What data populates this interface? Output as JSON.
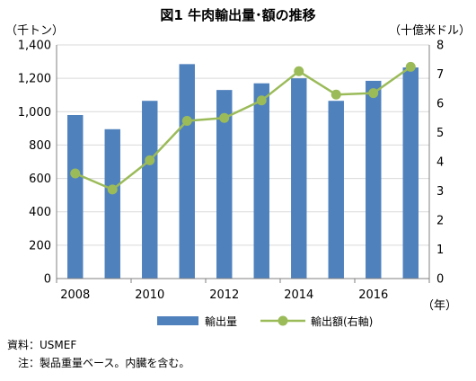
{
  "chart_data": {
    "type": "bar+line",
    "title": "図1  牛肉輸出量･額の推移",
    "left_axis_unit": "（千トン）",
    "right_axis_unit": "（十億米ドル）",
    "x_axis_unit": "（年）",
    "categories": [
      2008,
      2009,
      2010,
      2011,
      2012,
      2013,
      2014,
      2015,
      2016,
      2017
    ],
    "x_tick_labels": [
      "2008",
      "2010",
      "2012",
      "2014",
      "2016"
    ],
    "left_ticks": [
      "0",
      "200",
      "400",
      "600",
      "800",
      "1,000",
      "1,200",
      "1,400"
    ],
    "right_ticks": [
      "0",
      "1",
      "2",
      "3",
      "4",
      "5",
      "6",
      "7",
      "8"
    ],
    "ylim_left": [
      0,
      1400
    ],
    "ylim_right": [
      0,
      8
    ],
    "grid": true,
    "legend_position": "bottom",
    "series": [
      {
        "name": "輸出量",
        "type": "bar",
        "axis": "left",
        "color": "#4f81bd",
        "values": [
          980,
          895,
          1065,
          1285,
          1130,
          1170,
          1200,
          1065,
          1185,
          1265
        ]
      },
      {
        "name": "輸出額(右軸)",
        "type": "line",
        "axis": "right",
        "color": "#9bbb59",
        "values": [
          3.6,
          3.05,
          4.05,
          5.4,
          5.5,
          6.1,
          7.1,
          6.3,
          6.35,
          7.25
        ]
      }
    ]
  },
  "notes": {
    "source": "資料：USMEF",
    "detail": "注：製品重量ベース。内臓を含む。"
  }
}
